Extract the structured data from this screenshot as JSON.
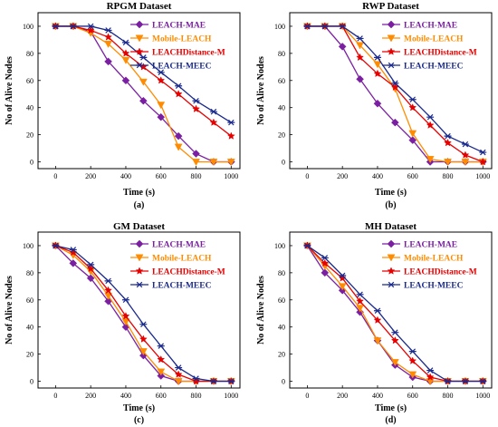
{
  "colors": {
    "LEACH-MAE": "#7b1fa2",
    "Mobile-LEACH": "#ff8c00",
    "LEACHDistance-M": "#e60000",
    "LEACH-MEEC": "#1a2a8c"
  },
  "markers": {
    "LEACH-MAE": "diamond",
    "Mobile-LEACH": "triangle-down",
    "LEACHDistance-M": "star",
    "LEACH-MEEC": "asterisk"
  },
  "chart_data": [
    {
      "type": "line",
      "title": "RPGM Dataset",
      "panel_label": "(a)",
      "xlabel": "Time (s)",
      "ylabel": "No of Alive Nodes",
      "xlim": [
        -100,
        1050
      ],
      "ylim": [
        -5,
        110
      ],
      "xticks": [
        0,
        200,
        400,
        600,
        800,
        1000
      ],
      "yticks": [
        0,
        20,
        40,
        60,
        80,
        100
      ],
      "legend": "top-right",
      "x": [
        0,
        100,
        200,
        300,
        400,
        500,
        600,
        700,
        800,
        900,
        1000
      ],
      "series": [
        {
          "name": "LEACH-MAE",
          "values": [
            100,
            100,
            96,
            74,
            60,
            45,
            33,
            19,
            6,
            0,
            0
          ]
        },
        {
          "name": "Mobile-LEACH",
          "values": [
            100,
            100,
            95,
            87,
            75,
            59,
            42,
            11,
            0,
            0,
            0
          ]
        },
        {
          "name": "LEACHDistance-M",
          "values": [
            100,
            100,
            97,
            92,
            80,
            70,
            60,
            50,
            39,
            29,
            19
          ]
        },
        {
          "name": "LEACH-MEEC",
          "values": [
            100,
            100,
            100,
            97,
            88,
            77,
            66,
            56,
            45,
            37,
            29
          ]
        }
      ]
    },
    {
      "type": "line",
      "title": "RWP Dataset",
      "panel_label": "(b)",
      "xlabel": "Time (s)",
      "ylabel": "No of Alive Nodes",
      "xlim": [
        -100,
        1050
      ],
      "ylim": [
        -5,
        110
      ],
      "xticks": [
        0,
        200,
        400,
        600,
        800,
        1000
      ],
      "yticks": [
        0,
        20,
        40,
        60,
        80,
        100
      ],
      "legend": "top-right",
      "x": [
        0,
        100,
        200,
        300,
        400,
        500,
        600,
        700,
        800,
        900,
        1000
      ],
      "series": [
        {
          "name": "LEACH-MAE",
          "values": [
            100,
            100,
            85,
            61,
            43,
            29,
            16,
            0,
            0,
            0,
            0
          ]
        },
        {
          "name": "Mobile-LEACH",
          "values": [
            100,
            100,
            100,
            86,
            72,
            54,
            21,
            2,
            0,
            0,
            0
          ]
        },
        {
          "name": "LEACHDistance-M",
          "values": [
            100,
            100,
            100,
            77,
            65,
            55,
            40,
            27,
            14,
            5,
            0
          ]
        },
        {
          "name": "LEACH-MEEC",
          "values": [
            100,
            100,
            100,
            91,
            77,
            58,
            46,
            33,
            19,
            13,
            7
          ]
        }
      ]
    },
    {
      "type": "line",
      "title": "GM Dataset",
      "panel_label": "(c)",
      "xlabel": "Time (s)",
      "ylabel": "No of Alive Nodes",
      "xlim": [
        -100,
        1050
      ],
      "ylim": [
        -5,
        110
      ],
      "xticks": [
        0,
        200,
        400,
        600,
        800,
        1000
      ],
      "yticks": [
        0,
        20,
        40,
        60,
        80,
        100
      ],
      "legend": "top-right",
      "x": [
        0,
        100,
        200,
        300,
        400,
        500,
        600,
        700,
        800,
        900,
        1000
      ],
      "series": [
        {
          "name": "LEACH-MAE",
          "values": [
            100,
            87,
            76,
            59,
            40,
            19,
            4,
            0,
            0,
            0,
            0
          ]
        },
        {
          "name": "Mobile-LEACH",
          "values": [
            100,
            93,
            81,
            63,
            44,
            22,
            7,
            0,
            0,
            0,
            0
          ]
        },
        {
          "name": "LEACHDistance-M",
          "values": [
            100,
            95,
            83,
            67,
            48,
            31,
            16,
            5,
            0,
            0,
            0
          ]
        },
        {
          "name": "LEACH-MEEC",
          "values": [
            100,
            97,
            86,
            74,
            60,
            42,
            26,
            10,
            2,
            0,
            0
          ]
        }
      ]
    },
    {
      "type": "line",
      "title": "MH Dataset",
      "panel_label": "(d)",
      "xlabel": "Time (s)",
      "ylabel": "No of Alive Nodes",
      "xlim": [
        -100,
        1050
      ],
      "ylim": [
        -5,
        110
      ],
      "xticks": [
        0,
        200,
        400,
        600,
        800,
        1000
      ],
      "yticks": [
        0,
        20,
        40,
        60,
        80,
        100
      ],
      "legend": "top-right",
      "x": [
        0,
        100,
        200,
        300,
        400,
        500,
        600,
        700,
        800,
        900,
        1000
      ],
      "series": [
        {
          "name": "LEACH-MAE",
          "values": [
            100,
            80,
            67,
            51,
            30,
            12,
            3,
            0,
            0,
            0,
            0
          ]
        },
        {
          "name": "Mobile-LEACH",
          "values": [
            100,
            85,
            70,
            54,
            30,
            14,
            5,
            0,
            0,
            0,
            0
          ]
        },
        {
          "name": "LEACHDistance-M",
          "values": [
            100,
            87,
            76,
            59,
            45,
            30,
            15,
            3,
            0,
            0,
            0
          ]
        },
        {
          "name": "LEACH-MEEC",
          "values": [
            100,
            91,
            78,
            64,
            52,
            36,
            22,
            8,
            0,
            0,
            0
          ]
        }
      ]
    }
  ]
}
